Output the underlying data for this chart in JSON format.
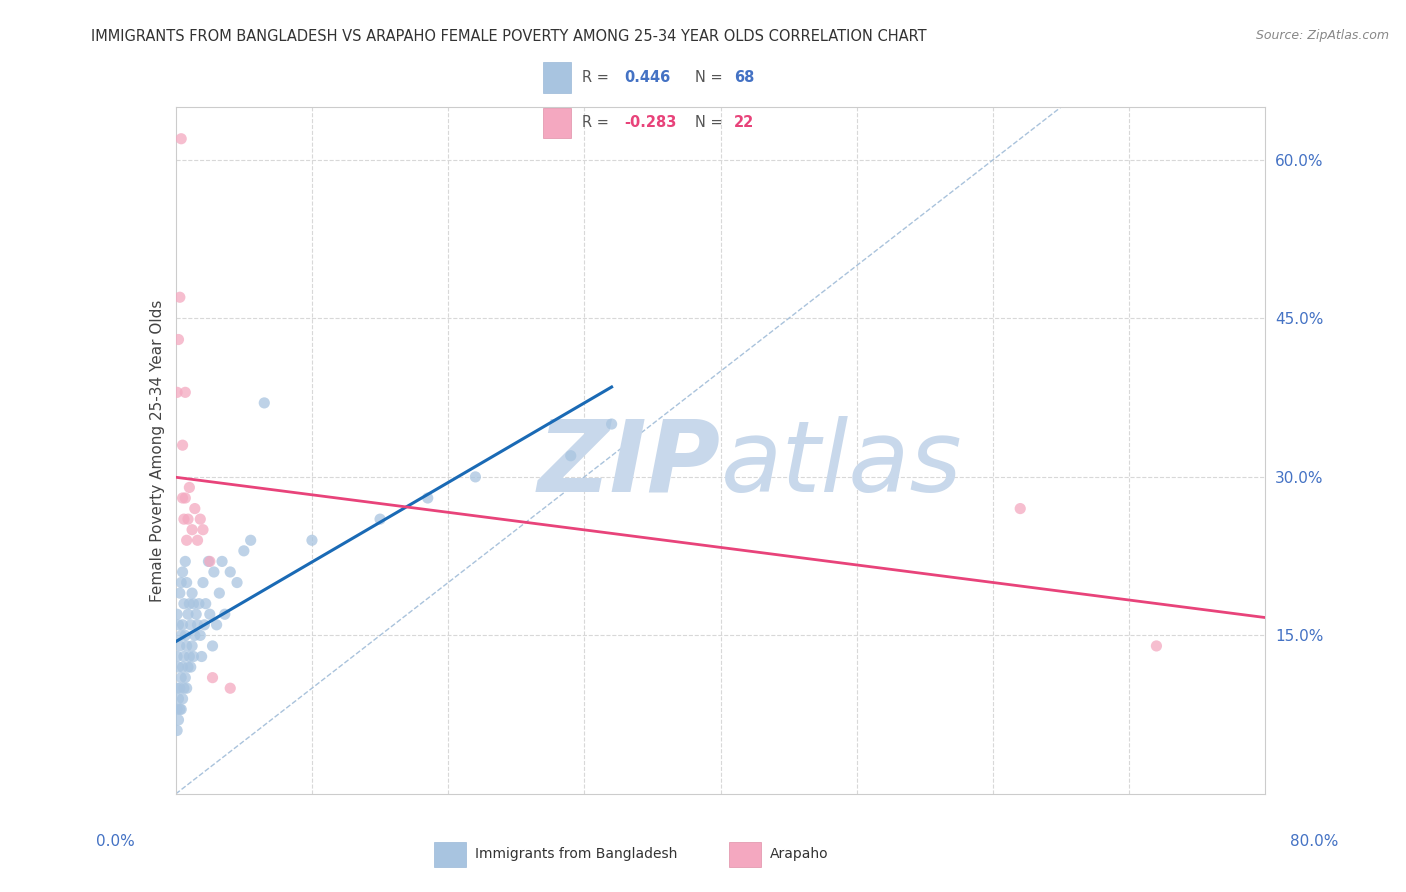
{
  "title": "IMMIGRANTS FROM BANGLADESH VS ARAPAHO FEMALE POVERTY AMONG 25-34 YEAR OLDS CORRELATION CHART",
  "source": "Source: ZipAtlas.com",
  "ylabel": "Female Poverty Among 25-34 Year Olds",
  "xlim": [
    0.0,
    0.8
  ],
  "ylim": [
    0.0,
    0.65
  ],
  "blue_color": "#a8c4e0",
  "pink_color": "#f4a8c0",
  "blue_line_color": "#1a6ab5",
  "pink_line_color": "#e8437a",
  "diag_color": "#a0bcd8",
  "blue_r": 0.446,
  "blue_n": 68,
  "pink_r": -0.283,
  "pink_n": 22,
  "blue_x": [
    0.001,
    0.001,
    0.001,
    0.001,
    0.001,
    0.002,
    0.002,
    0.002,
    0.002,
    0.003,
    0.003,
    0.003,
    0.003,
    0.004,
    0.004,
    0.004,
    0.004,
    0.005,
    0.005,
    0.005,
    0.005,
    0.006,
    0.006,
    0.006,
    0.007,
    0.007,
    0.007,
    0.008,
    0.008,
    0.008,
    0.009,
    0.009,
    0.01,
    0.01,
    0.011,
    0.011,
    0.012,
    0.012,
    0.013,
    0.013,
    0.014,
    0.015,
    0.016,
    0.017,
    0.018,
    0.019,
    0.02,
    0.021,
    0.022,
    0.024,
    0.025,
    0.027,
    0.028,
    0.03,
    0.032,
    0.034,
    0.036,
    0.04,
    0.045,
    0.05,
    0.055,
    0.065,
    0.1,
    0.15,
    0.185,
    0.22,
    0.29,
    0.32
  ],
  "blue_y": [
    0.06,
    0.08,
    0.1,
    0.13,
    0.17,
    0.07,
    0.09,
    0.12,
    0.16,
    0.08,
    0.1,
    0.14,
    0.19,
    0.08,
    0.11,
    0.15,
    0.2,
    0.09,
    0.12,
    0.16,
    0.21,
    0.1,
    0.13,
    0.18,
    0.11,
    0.15,
    0.22,
    0.1,
    0.14,
    0.2,
    0.12,
    0.17,
    0.13,
    0.18,
    0.12,
    0.16,
    0.14,
    0.19,
    0.13,
    0.18,
    0.15,
    0.17,
    0.16,
    0.18,
    0.15,
    0.13,
    0.2,
    0.16,
    0.18,
    0.22,
    0.17,
    0.14,
    0.21,
    0.16,
    0.19,
    0.22,
    0.17,
    0.21,
    0.2,
    0.23,
    0.24,
    0.37,
    0.24,
    0.26,
    0.28,
    0.3,
    0.32,
    0.35
  ],
  "pink_x": [
    0.001,
    0.002,
    0.003,
    0.004,
    0.005,
    0.005,
    0.006,
    0.007,
    0.007,
    0.008,
    0.009,
    0.01,
    0.012,
    0.014,
    0.016,
    0.018,
    0.02,
    0.025,
    0.027,
    0.04,
    0.62,
    0.72
  ],
  "pink_y": [
    0.38,
    0.43,
    0.47,
    0.62,
    0.28,
    0.33,
    0.26,
    0.28,
    0.38,
    0.24,
    0.26,
    0.29,
    0.25,
    0.27,
    0.24,
    0.26,
    0.25,
    0.22,
    0.11,
    0.1,
    0.27,
    0.14
  ],
  "watermark_zip": "ZIP",
  "watermark_atlas": "atlas",
  "watermark_color_zip": "#c8d8eb",
  "watermark_color_atlas": "#c8d8eb",
  "grid_color": "#d8d8d8",
  "yticks": [
    0.15,
    0.3,
    0.45,
    0.6
  ],
  "ytick_labels": [
    "15.0%",
    "30.0%",
    "45.0%",
    "60.0%"
  ]
}
